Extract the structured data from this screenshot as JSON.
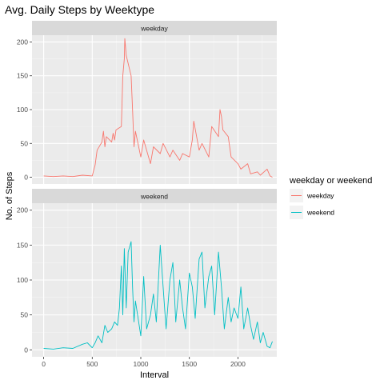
{
  "chart_data": {
    "type": "line",
    "title": "Avg. Daily Steps by Weektype",
    "xlabel": "Interval",
    "ylabel": "No. of Steps",
    "xlim": [
      -120,
      2400
    ],
    "ylim": [
      -10,
      210
    ],
    "xticks": [
      0,
      500,
      1000,
      1500,
      2000
    ],
    "yticks": [
      0,
      50,
      100,
      150,
      200
    ],
    "grid": true,
    "legend": {
      "title": "weekday or weekend",
      "position": "right",
      "entries": [
        "weekday",
        "weekend"
      ]
    },
    "panels": [
      {
        "strip_label": "weekday",
        "series": [
          {
            "name": "weekday",
            "color": "#F8766D",
            "x": [
              0,
              100,
              200,
              300,
              400,
              500,
              530,
              550,
              600,
              615,
              630,
              645,
              700,
              715,
              730,
              745,
              800,
              815,
              830,
              835,
              850,
              900,
              915,
              930,
              945,
              1000,
              1030,
              1100,
              1130,
              1200,
              1230,
              1300,
              1330,
              1400,
              1430,
              1500,
              1530,
              1545,
              1600,
              1630,
              1700,
              1730,
              1800,
              1815,
              1830,
              1845,
              1900,
              1930,
              2000,
              2030,
              2100,
              2130,
              2200,
              2230,
              2300,
              2330,
              2355
            ],
            "y": [
              2,
              1,
              2,
              1,
              3,
              2,
              18,
              40,
              52,
              68,
              45,
              60,
              52,
              65,
              55,
              70,
              75,
              150,
              175,
              205,
              180,
              150,
              100,
              45,
              68,
              30,
              55,
              20,
              45,
              35,
              50,
              30,
              40,
              25,
              35,
              30,
              55,
              83,
              40,
              50,
              30,
              75,
              60,
              100,
              90,
              70,
              60,
              30,
              20,
              12,
              20,
              5,
              8,
              3,
              12,
              2,
              0
            ]
          }
        ]
      },
      {
        "strip_label": "weekend",
        "series": [
          {
            "name": "weekend",
            "color": "#00BFC4",
            "x": [
              0,
              100,
              200,
              300,
              400,
              450,
              500,
              530,
              560,
              600,
              630,
              660,
              700,
              730,
              760,
              780,
              800,
              815,
              830,
              850,
              870,
              900,
              915,
              930,
              945,
              1000,
              1030,
              1060,
              1100,
              1130,
              1160,
              1200,
              1230,
              1260,
              1300,
              1330,
              1360,
              1400,
              1430,
              1460,
              1500,
              1530,
              1560,
              1600,
              1630,
              1660,
              1700,
              1730,
              1760,
              1800,
              1830,
              1860,
              1900,
              1930,
              1960,
              2000,
              2030,
              2060,
              2100,
              2130,
              2160,
              2200,
              2230,
              2260,
              2300,
              2330,
              2355
            ],
            "y": [
              2,
              1,
              3,
              2,
              8,
              10,
              3,
              10,
              20,
              10,
              35,
              25,
              30,
              40,
              35,
              60,
              120,
              50,
              145,
              60,
              140,
              155,
              90,
              40,
              70,
              20,
              105,
              30,
              50,
              80,
              40,
              150,
              90,
              30,
              100,
              125,
              40,
              100,
              60,
              30,
              110,
              90,
              45,
              130,
              140,
              60,
              105,
              120,
              50,
              140,
              90,
              30,
              75,
              40,
              60,
              45,
              90,
              30,
              60,
              35,
              15,
              40,
              10,
              25,
              5,
              3,
              12
            ]
          }
        ]
      }
    ]
  }
}
